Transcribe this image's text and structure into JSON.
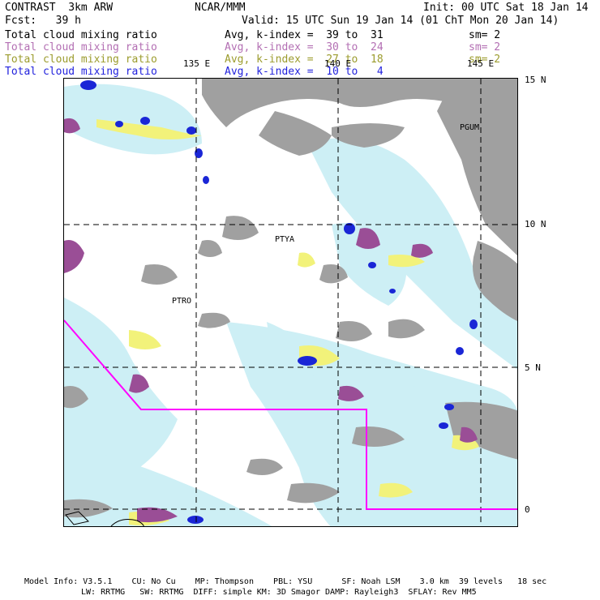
{
  "header": {
    "left1": "CONTRAST  3km ARW",
    "center1": "NCAR/MMM",
    "right1": "Init: 00 UTC Sat 18 Jan 14",
    "left2": "Fcst:   39 h",
    "right2": "Valid: 15 UTC Sun 19 Jan 14 (01 ChT Mon 20 Jan 14)"
  },
  "fields": [
    {
      "name": "Total cloud mixing ratio",
      "avg": "Avg, k-index =  39 to  31",
      "sm": "sm= 2",
      "color": "#000000"
    },
    {
      "name": "Total cloud mixing ratio",
      "avg": "Avg, k-index =  30 to  24",
      "sm": "sm= 2",
      "color": "#b36fb3"
    },
    {
      "name": "Total cloud mixing ratio",
      "avg": "Avg, k-index =  27 to  18",
      "sm": "sm= 2",
      "color": "#9c9c2e"
    },
    {
      "name": "Total cloud mixing ratio",
      "avg": "Avg, k-index =  10 to   4",
      "sm": "",
      "color": "#2222dd"
    }
  ],
  "map": {
    "lon_labels": [
      "135 E",
      "140 E",
      "145 E"
    ],
    "lat_labels": [
      "15 N",
      "10 N",
      "5 N",
      "0"
    ],
    "stations": [
      "PGUM",
      "PTYA",
      "PTRO"
    ],
    "colors": {
      "gray": "#a0a0a0",
      "light_blue": "#cdeff5",
      "purple": "#9a4e96",
      "yellow": "#f2f27a",
      "blue": "#1a26d6",
      "boundary": "#ff00ff"
    }
  },
  "footer": {
    "line1": "Model Info: V3.5.1    CU: No Cu    MP: Thompson    PBL: YSU      SF: Noah LSM    3.0 km  39 levels   18 sec",
    "line2": "LW: RRTMG   SW: RRTMG  DIFF: simple KM: 3D Smagor DAMP: Rayleigh3  SFLAY: Rev MM5"
  }
}
